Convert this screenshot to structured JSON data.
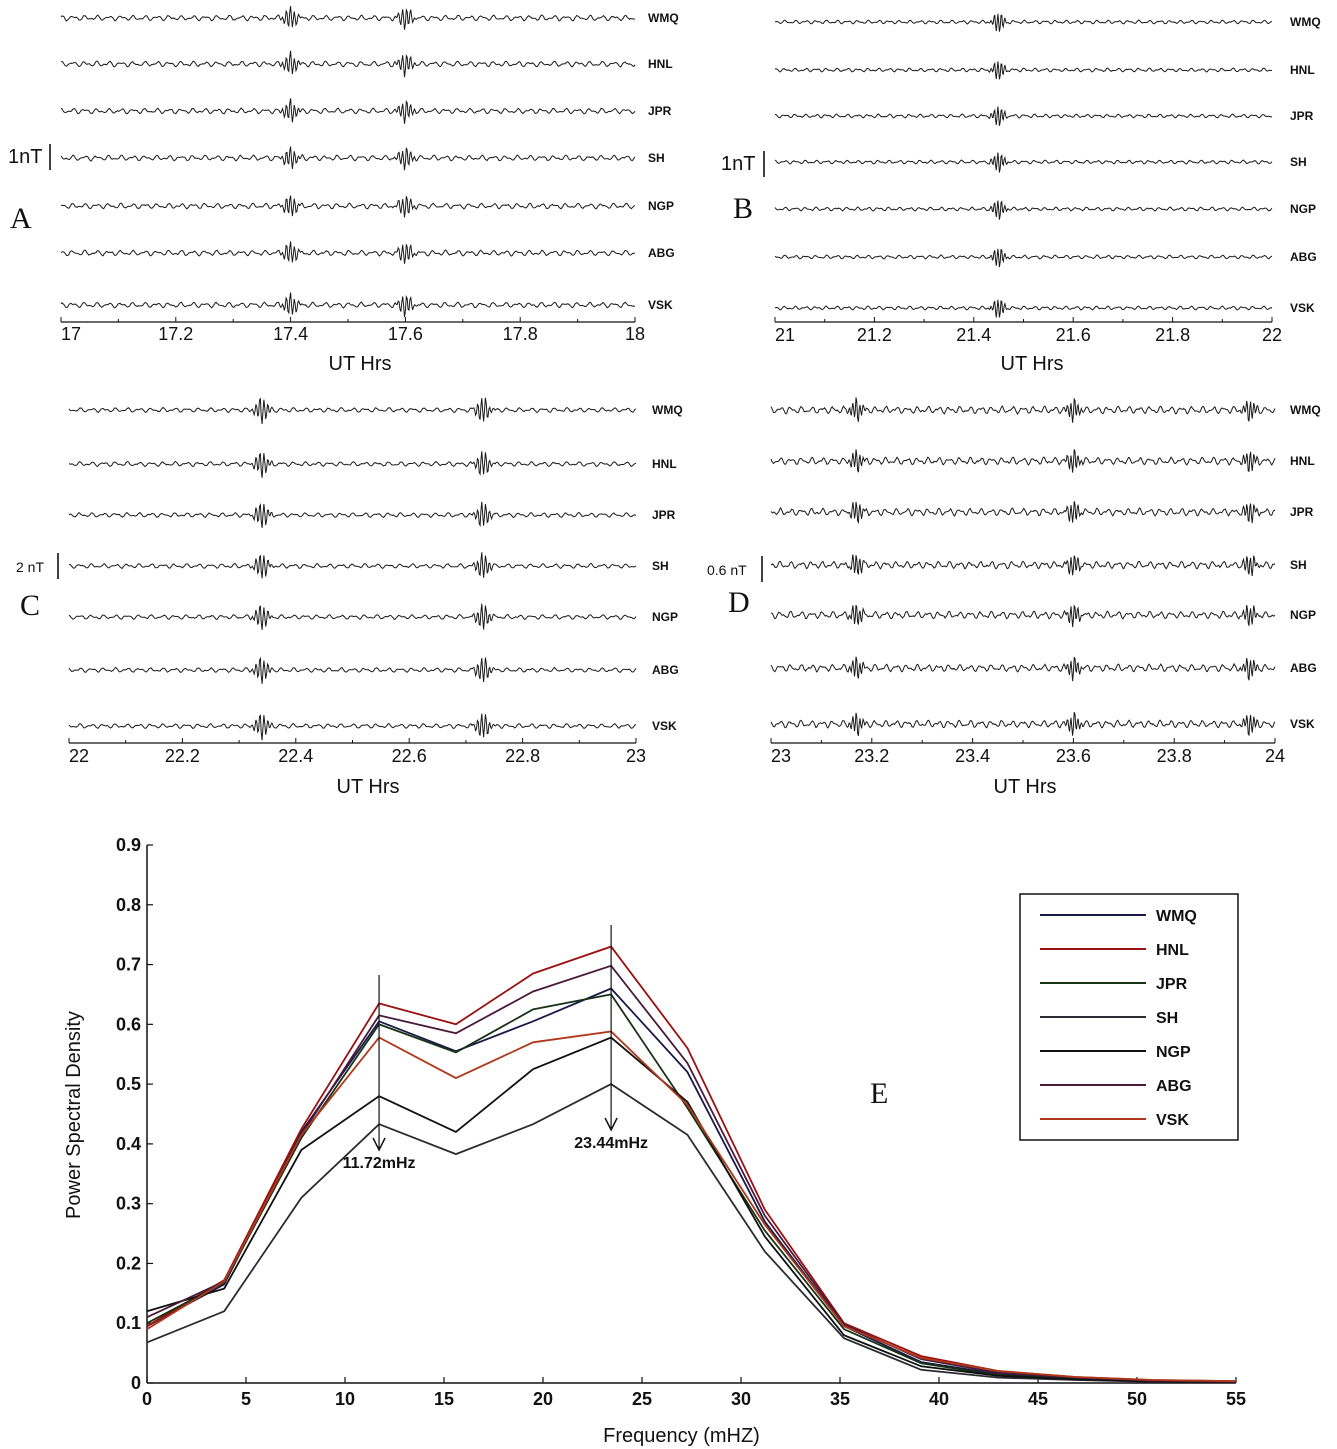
{
  "chart_data": [
    {
      "panel": "A",
      "type": "line",
      "stations": [
        "WMQ",
        "HNL",
        "JPR",
        "SH",
        "NGP",
        "ABG",
        "VSK"
      ],
      "x_ticks": [
        "17",
        "17.2",
        "17.4",
        "17.6",
        "17.8",
        "18"
      ],
      "xlim": [
        17,
        18
      ],
      "xlabel": "UT Hrs",
      "scale_label": "1nT",
      "bursts": [
        17.4,
        17.6
      ]
    },
    {
      "panel": "B",
      "type": "line",
      "stations": [
        "WMQ",
        "HNL",
        "JPR",
        "SH",
        "NGP",
        "ABG",
        "VSK"
      ],
      "x_ticks": [
        "21",
        "21.2",
        "21.4",
        "21.6",
        "21.8",
        "22"
      ],
      "xlim": [
        21,
        22
      ],
      "xlabel": "UT Hrs",
      "scale_label": "1nT",
      "bursts": [
        21.45
      ]
    },
    {
      "panel": "C",
      "type": "line",
      "stations": [
        "WMQ",
        "HNL",
        "JPR",
        "SH",
        "NGP",
        "ABG",
        "VSK"
      ],
      "x_ticks": [
        "22",
        "22.2",
        "22.4",
        "22.6",
        "22.8",
        "23"
      ],
      "xlim": [
        22,
        23
      ],
      "xlabel": "UT Hrs",
      "scale_label": "2 nT",
      "bursts": [
        22.34,
        22.73
      ]
    },
    {
      "panel": "D",
      "type": "line",
      "stations": [
        "WMQ",
        "HNL",
        "JPR",
        "SH",
        "NGP",
        "ABG",
        "VSK"
      ],
      "x_ticks": [
        "23",
        "23.2",
        "23.4",
        "23.6",
        "23.8",
        "24"
      ],
      "xlim": [
        23,
        24
      ],
      "xlabel": "UT Hrs",
      "scale_label": "0.6 nT",
      "bursts": [
        23.17,
        23.6,
        23.95
      ]
    },
    {
      "panel": "E",
      "type": "line",
      "x": [
        0,
        3.9,
        7.8,
        11.72,
        15.6,
        19.5,
        23.44,
        27.3,
        31.2,
        35.2,
        39.1,
        43.0,
        46.9,
        50.8,
        55
      ],
      "series": [
        {
          "name": "WMQ",
          "color": "#1a1a4a",
          "values": [
            0.095,
            0.165,
            0.42,
            0.605,
            0.555,
            0.605,
            0.66,
            0.52,
            0.27,
            0.095,
            0.035,
            0.015,
            0.008,
            0.004,
            0.002
          ]
        },
        {
          "name": "HNL",
          "color": "#9b1010",
          "values": [
            0.095,
            0.172,
            0.425,
            0.635,
            0.6,
            0.685,
            0.73,
            0.56,
            0.29,
            0.1,
            0.045,
            0.02,
            0.01,
            0.005,
            0.003
          ]
        },
        {
          "name": "JPR",
          "color": "#163316",
          "values": [
            0.1,
            0.168,
            0.41,
            0.6,
            0.553,
            0.625,
            0.65,
            0.46,
            0.255,
            0.09,
            0.033,
            0.013,
            0.007,
            0.004,
            0.002
          ]
        },
        {
          "name": "SH",
          "color": "#2b2b33",
          "values": [
            0.068,
            0.12,
            0.31,
            0.433,
            0.383,
            0.433,
            0.5,
            0.415,
            0.22,
            0.075,
            0.022,
            0.009,
            0.005,
            0.002,
            0.001
          ]
        },
        {
          "name": "NGP",
          "color": "#111111",
          "values": [
            0.12,
            0.158,
            0.39,
            0.48,
            0.42,
            0.525,
            0.578,
            0.47,
            0.245,
            0.08,
            0.028,
            0.012,
            0.006,
            0.003,
            0.001
          ]
        },
        {
          "name": "ABG",
          "color": "#4a1a3a",
          "values": [
            0.11,
            0.17,
            0.415,
            0.615,
            0.585,
            0.655,
            0.698,
            0.535,
            0.28,
            0.098,
            0.04,
            0.017,
            0.009,
            0.004,
            0.002
          ]
        },
        {
          "name": "VSK",
          "color": "#b0381a",
          "values": [
            0.09,
            0.17,
            0.415,
            0.578,
            0.51,
            0.57,
            0.588,
            0.465,
            0.265,
            0.095,
            0.042,
            0.02,
            0.01,
            0.005,
            0.003
          ]
        }
      ],
      "xlim": [
        0,
        55
      ],
      "ylim": [
        0,
        0.9
      ],
      "x_ticks": [
        0,
        5,
        10,
        15,
        20,
        25,
        30,
        35,
        40,
        45,
        50,
        55
      ],
      "y_ticks": [
        "0",
        "0.1",
        "0.2",
        "0.3",
        "0.4",
        "0.5",
        "0.6",
        "0.7",
        "0.8",
        "0.9"
      ],
      "xlabel": "Frequency (mHZ)",
      "ylabel": "Power Spectral Density",
      "annotations": [
        {
          "x": 11.72,
          "text": "11.72mHz"
        },
        {
          "x": 23.44,
          "text": "23.44mHz"
        }
      ],
      "legend_placement": "right",
      "panel_label": "E"
    }
  ]
}
